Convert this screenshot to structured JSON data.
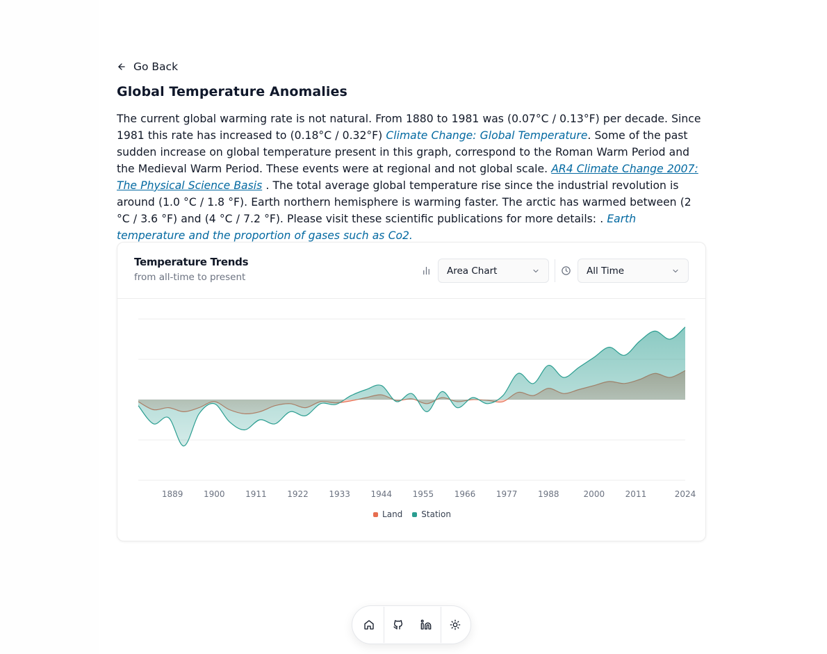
{
  "nav": {
    "back_label": "Go Back"
  },
  "page": {
    "title": "Global Temperature Anomalies",
    "desc": {
      "p1": "The current global warming rate is not natural. From 1880 to 1981 was (0.07°C / 0.13°F) per decade. Since 1981 this rate has increased to (0.18°C / 0.32°F) ",
      "link1": "Climate Change: Global Temperature",
      "p2": ". Some of the past sudden increase on global temperature present in this graph, correspond to the Roman Warm Period and the Medieval Warm Period. These events were at regional and not global scale. ",
      "link2": "AR4 Climate Change 2007: The Physical Science Basis",
      "p3": " . The total average global temperature rise since the industrial revolution is around (1.0 °C / 1.8 °F). Earth northern hemisphere is warming faster. The arctic has warmed between (2 °C / 3.6 °F) and (4 °C / 7.2 °F). Please visit these scientific publications for more details: . ",
      "link3": "Earth temperature and the proportion of gases such as Co2."
    }
  },
  "card": {
    "title": "Temperature Trends",
    "subtitle": "from all-time to present",
    "chart_type_select": "Area Chart",
    "time_range_select": "All Time"
  },
  "chart_data": {
    "type": "area",
    "title": "Temperature Trends",
    "xlabel": "",
    "ylabel": "",
    "x_ticks": [
      "1889",
      "1900",
      "1911",
      "1922",
      "1933",
      "1944",
      "1955",
      "1966",
      "1977",
      "1988",
      "2000",
      "2011",
      "2024"
    ],
    "x": [
      1880,
      1884,
      1888,
      1892,
      1896,
      1900,
      1904,
      1908,
      1912,
      1916,
      1920,
      1924,
      1928,
      1932,
      1936,
      1940,
      1944,
      1948,
      1952,
      1956,
      1960,
      1964,
      1968,
      1972,
      1976,
      1980,
      1984,
      1988,
      1992,
      1996,
      2000,
      2004,
      2008,
      2012,
      2016,
      2020,
      2024
    ],
    "series": [
      {
        "name": "Land",
        "color": "#e76e50",
        "values": [
          -0.05,
          -0.25,
          -0.2,
          -0.3,
          -0.2,
          -0.05,
          -0.25,
          -0.35,
          -0.3,
          -0.15,
          -0.1,
          -0.2,
          -0.05,
          -0.08,
          -0.03,
          0.05,
          0.12,
          -0.02,
          0.02,
          -0.1,
          0.05,
          -0.05,
          0.0,
          -0.02,
          -0.05,
          0.18,
          0.1,
          0.28,
          0.15,
          0.25,
          0.35,
          0.45,
          0.4,
          0.5,
          0.65,
          0.55,
          0.72
        ]
      },
      {
        "name": "Station",
        "color": "#2a9d90",
        "values": [
          -0.15,
          -0.6,
          -0.45,
          -1.15,
          -0.35,
          -0.1,
          -0.55,
          -0.75,
          -0.5,
          -0.6,
          -0.3,
          -0.4,
          -0.1,
          -0.12,
          0.1,
          0.25,
          0.35,
          -0.05,
          0.15,
          -0.3,
          0.2,
          -0.2,
          0.05,
          -0.1,
          0.1,
          0.65,
          0.4,
          0.85,
          0.55,
          0.8,
          1.05,
          1.3,
          1.1,
          1.45,
          1.7,
          1.5,
          1.8
        ]
      }
    ],
    "ylim": [
      -2,
      2
    ],
    "grid": true,
    "legend": "bottom-center"
  },
  "dock": {
    "items": [
      {
        "icon": "home-icon"
      },
      {
        "icon": "github-icon"
      },
      {
        "icon": "linkedin-icon"
      },
      {
        "icon": "sun-icon"
      }
    ]
  }
}
